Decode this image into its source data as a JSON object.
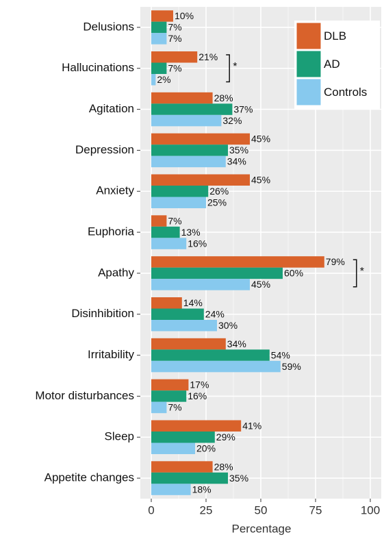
{
  "chart_data": {
    "type": "bar",
    "orientation": "horizontal",
    "x_label": "Percentage",
    "categories": [
      "Delusions",
      "Hallucinations",
      "Agitation",
      "Depression",
      "Anxiety",
      "Euphoria",
      "Apathy",
      "Disinhibition",
      "Irritability",
      "Motor disturbances",
      "Sleep",
      "Appetite changes"
    ],
    "series": [
      {
        "name": "DLB",
        "color": "#d9622b",
        "values": [
          10,
          21,
          28,
          45,
          45,
          7,
          79,
          14,
          34,
          17,
          41,
          28
        ],
        "value_labels": [
          "10%",
          "21%",
          "28%",
          "45%",
          "45%",
          "7%",
          "79%",
          "14%",
          "34%",
          "17%",
          "41%",
          "28%"
        ]
      },
      {
        "name": "AD",
        "color": "#1a9e77",
        "values": [
          7,
          7,
          37,
          35,
          26,
          13,
          60,
          24,
          54,
          16,
          29,
          35
        ],
        "value_labels": [
          "7%",
          "7%",
          "37%",
          "35%",
          "26%",
          "13%",
          "60%",
          "24%",
          "54%",
          "16%",
          "29%",
          "35%"
        ]
      },
      {
        "name": "Controls",
        "color": "#87c9ee",
        "values": [
          7,
          2,
          32,
          34,
          25,
          16,
          45,
          30,
          59,
          7,
          20,
          18
        ],
        "value_labels": [
          "7%",
          "2%",
          "32%",
          "34%",
          "25%",
          "16%",
          "45%",
          "30%",
          "59%",
          "7%",
          "20%",
          "18%"
        ]
      }
    ],
    "xlim": [
      -5,
      105
    ],
    "xticks": [
      0,
      25,
      50,
      75,
      100
    ],
    "grid": true,
    "legend": "top-right",
    "annotations": [
      {
        "text": "*",
        "at": "Hallucinations"
      },
      {
        "text": "*",
        "at": "Apathy"
      }
    ]
  }
}
